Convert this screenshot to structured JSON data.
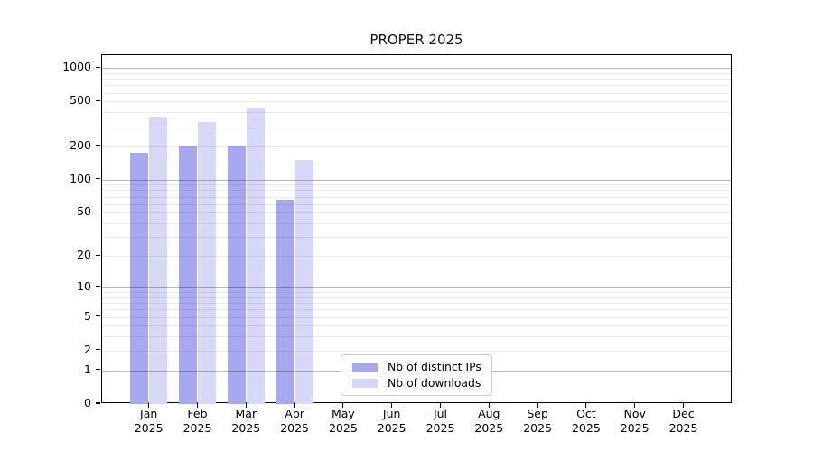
{
  "chart_data": {
    "type": "bar",
    "title": "PROPER 2025",
    "categories": [
      "Jan",
      "Feb",
      "Mar",
      "Apr",
      "May",
      "Jun",
      "Jul",
      "Aug",
      "Sep",
      "Oct",
      "Nov",
      "Dec"
    ],
    "year_label": "2025",
    "series": [
      {
        "name": "Nb of distinct IPs",
        "color": "#a8a8f1",
        "values": [
          175,
          200,
          200,
          65,
          0,
          0,
          0,
          0,
          0,
          0,
          0,
          0
        ]
      },
      {
        "name": "Nb of downloads",
        "color": "#d7d7f7",
        "values": [
          370,
          325,
          430,
          150,
          0,
          0,
          0,
          0,
          0,
          0,
          0,
          0
        ]
      }
    ],
    "y_ticks": [
      0,
      1,
      2,
      5,
      10,
      20,
      50,
      100,
      200,
      500,
      1000
    ],
    "y_scale": "log1p",
    "ylim": [
      0,
      1300
    ],
    "xlabel": "",
    "ylabel": "",
    "grid": "both",
    "legend_position": "lower center"
  },
  "colors": {
    "background": "#ffffff",
    "spine": "#000000",
    "bar_distinct_ips": "#a8a8f1",
    "bar_downloads": "#d7d7f7",
    "major_grid": "rgba(0,0,0,0.28)",
    "minor_grid": "rgba(0,0,0,0.08)",
    "tick_label": "#000000"
  }
}
